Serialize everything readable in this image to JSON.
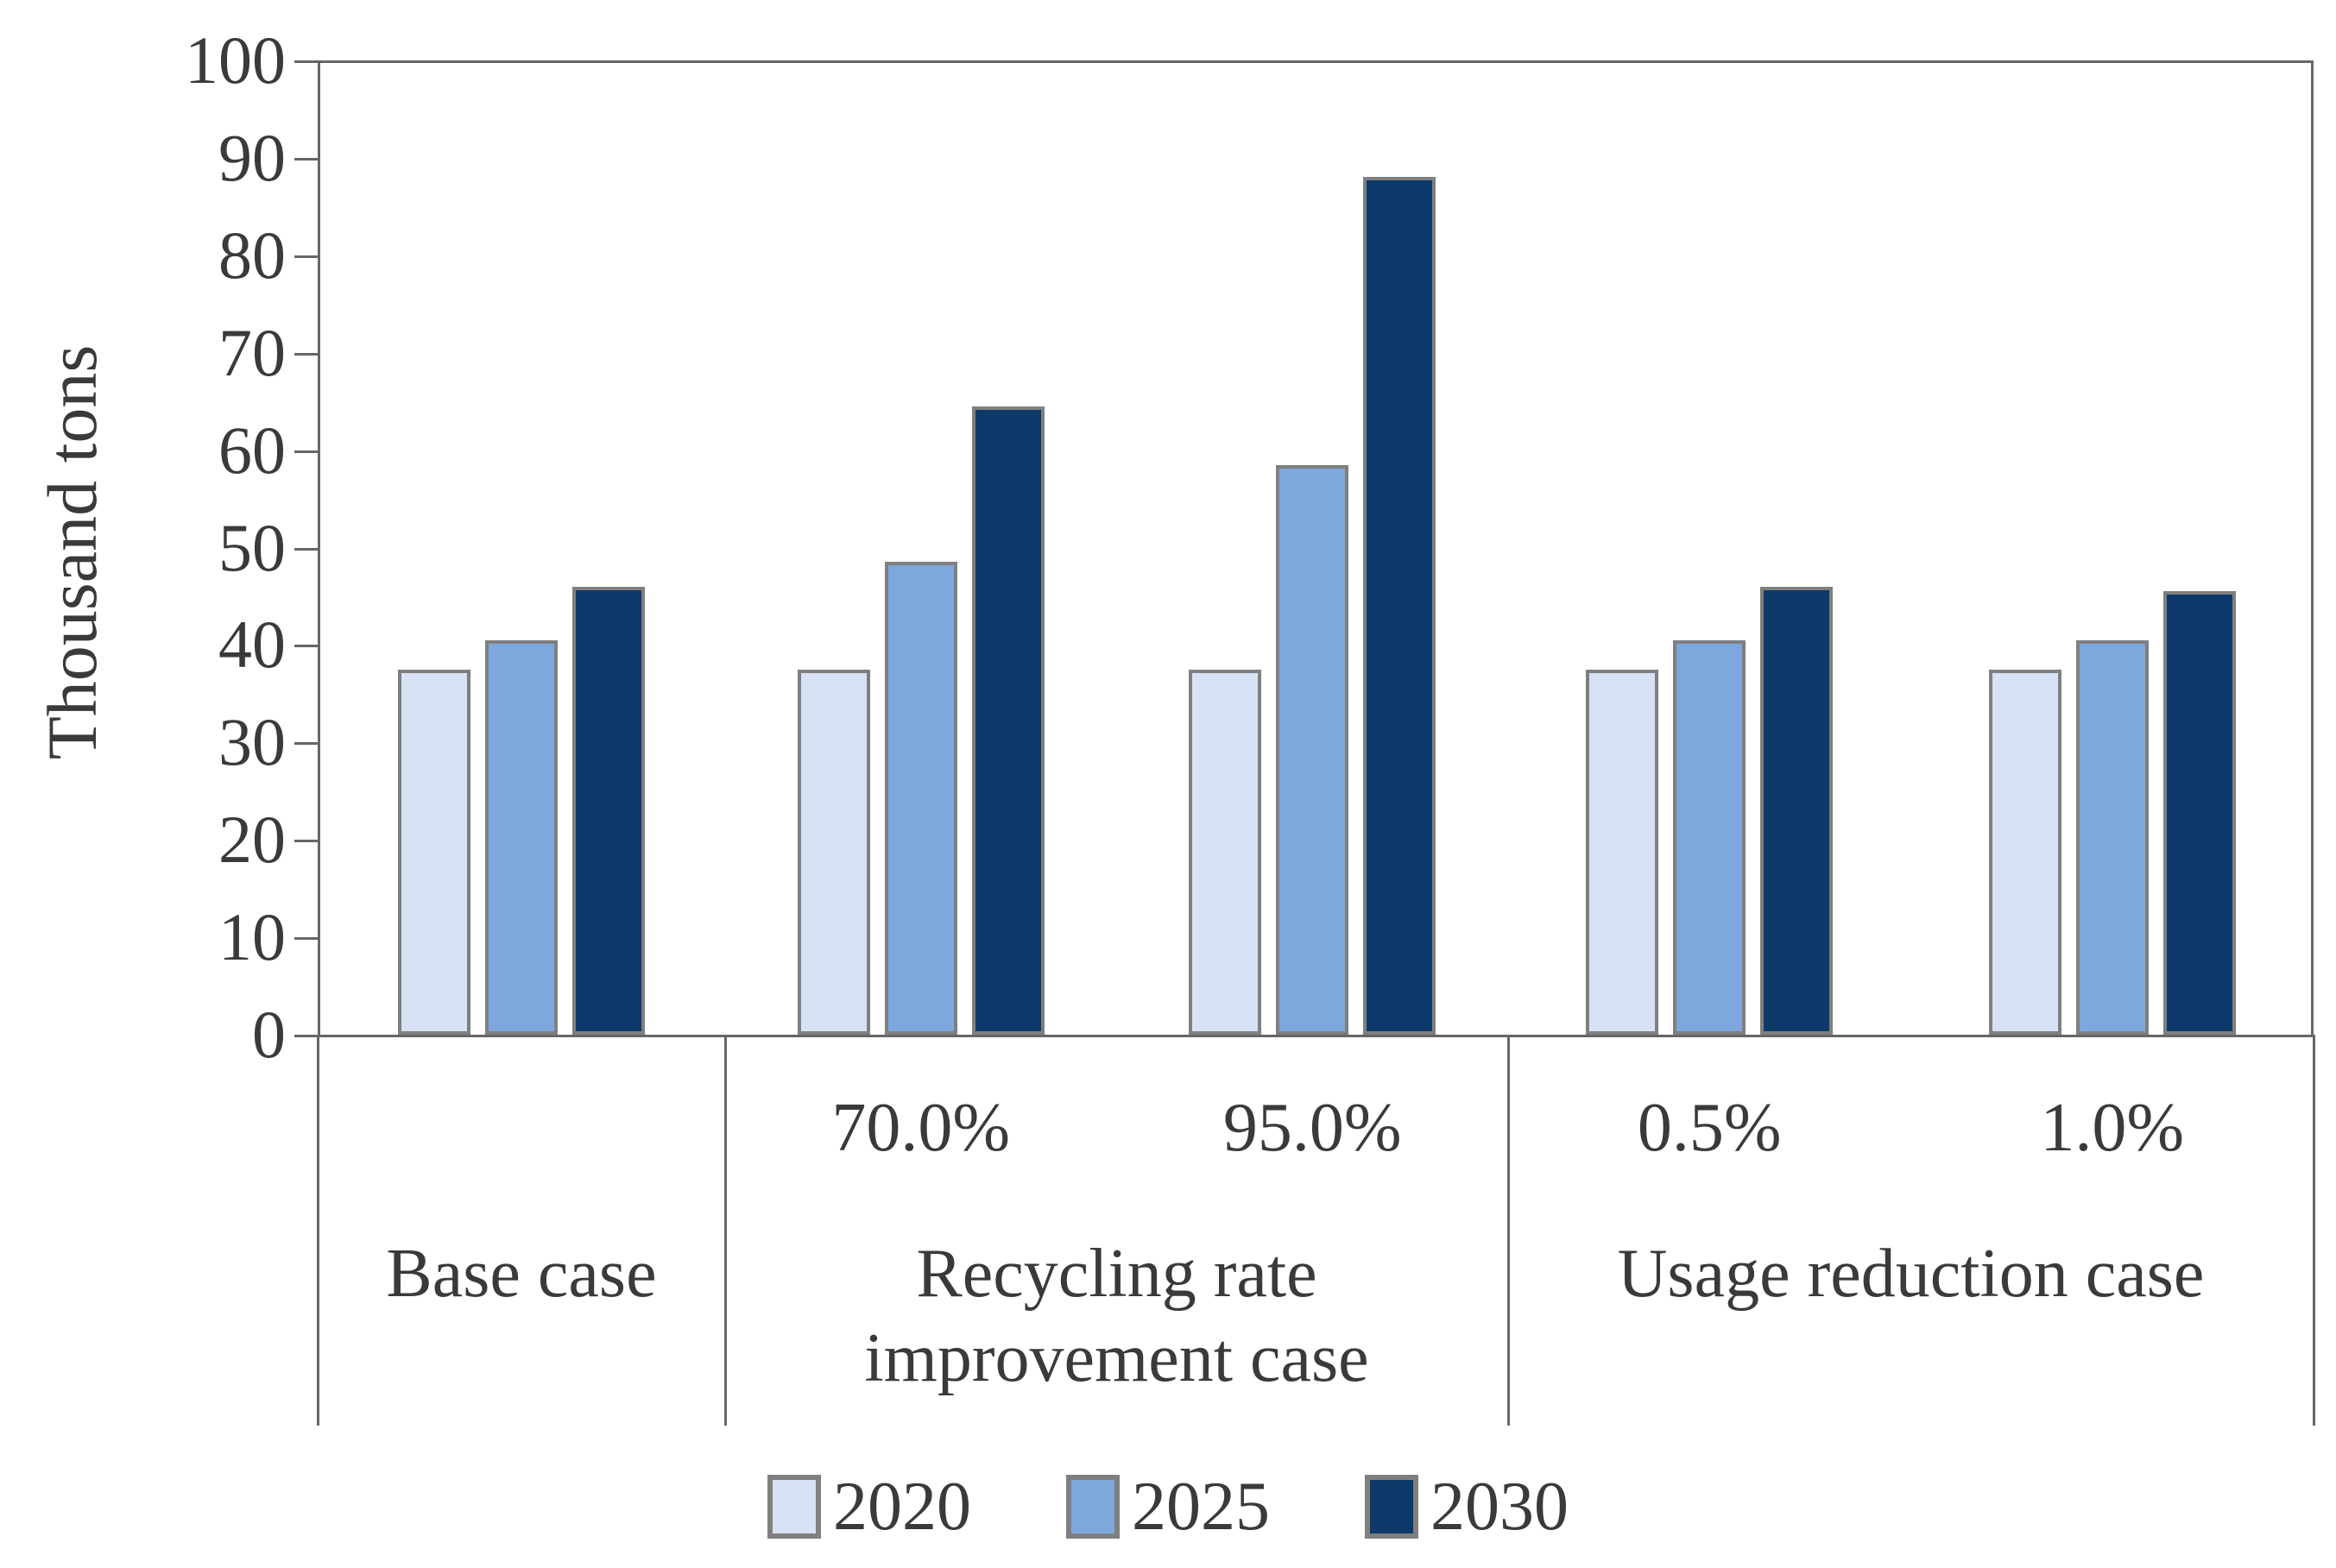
{
  "chart_data": {
    "type": "bar",
    "title": "",
    "ylabel": "Thousand tons",
    "xlabel": "",
    "ylim": [
      0,
      100
    ],
    "ytick_interval": 10,
    "ytick_labels": [
      "0",
      "10",
      "20",
      "30",
      "40",
      "50",
      "60",
      "70",
      "80",
      "90",
      "100"
    ],
    "grid": false,
    "legend": {
      "position": "bottom",
      "entries": [
        "2020",
        "2025",
        "2030"
      ]
    },
    "case_groups": [
      {
        "label": "Base case",
        "subcategories": [
          ""
        ]
      },
      {
        "label": "Recycling rate improvement case",
        "subcategories": [
          "70.0%",
          "95.0%"
        ]
      },
      {
        "label": "Usage reduction case",
        "subcategories": [
          "0.5%",
          "1.0%"
        ]
      }
    ],
    "categories": [
      "Base case",
      "70.0%",
      "95.0%",
      "0.5%",
      "1.0%"
    ],
    "series": [
      {
        "name": "2020",
        "color": "#d7e3f4",
        "values": [
          37.5,
          37.5,
          37.5,
          37.5,
          37.5
        ]
      },
      {
        "name": "2025",
        "color": "#7ea8dd",
        "values": [
          40.5,
          48.5,
          58.5,
          40.5,
          40.5
        ]
      },
      {
        "name": "2030",
        "color": "#0e3a6b",
        "values": [
          46,
          64.5,
          88,
          46,
          45.5
        ]
      }
    ],
    "colors": {
      "bar_border": "#7f7f7f",
      "axis_line": "#666666",
      "text": "#3a3a3a",
      "background": "#ffffff"
    }
  }
}
